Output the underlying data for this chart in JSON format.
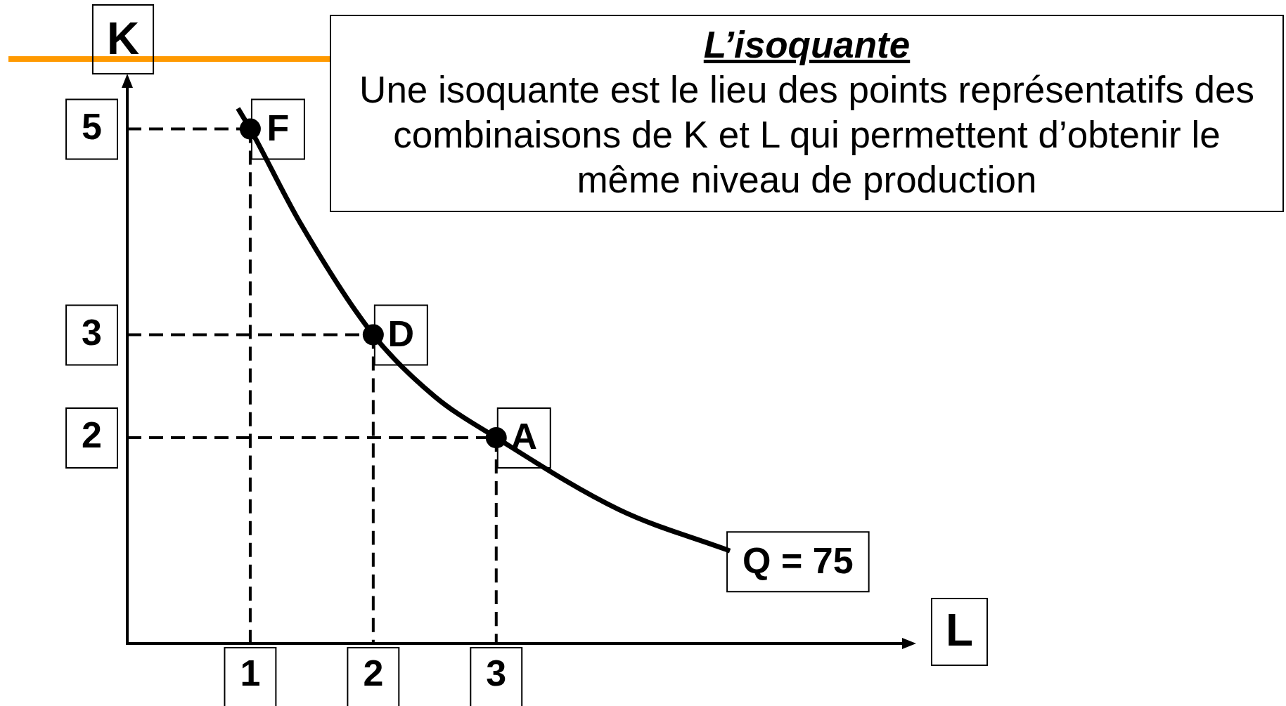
{
  "chart_data": {
    "type": "line",
    "title": "L’isoquante",
    "subtitle": "Une isoquante est le lieu des points représentatifs des combinaisons de K et L qui permettent d’obtenir le même niveau de production",
    "xlabel": "L",
    "ylabel": "K",
    "xlim": [
      0,
      6.3
    ],
    "ylim": [
      0,
      5.4
    ],
    "xticks": [
      1,
      2,
      3
    ],
    "yticks": [
      2,
      3,
      5
    ],
    "grid": false,
    "legend": false,
    "series": [
      {
        "name": "Q = 75",
        "type": "line",
        "color": "#000000",
        "line_style": "solid",
        "marker": "none",
        "x": [
          0.9,
          1,
          1.4,
          2,
          2.5,
          3,
          4,
          4.9
        ],
        "values": [
          5.2,
          5,
          4.1,
          3,
          2.4,
          2,
          1.3,
          0.9
        ]
      },
      {
        "type": "line",
        "color": "#000000",
        "line_style": "dashed",
        "marker": "none",
        "x": [
          0,
          1
        ],
        "values": [
          5,
          5
        ]
      },
      {
        "type": "line",
        "color": "#000000",
        "line_style": "dashed",
        "marker": "none",
        "x": [
          1,
          1
        ],
        "values": [
          5,
          0
        ]
      },
      {
        "type": "line",
        "color": "#000000",
        "line_style": "dashed",
        "marker": "none",
        "x": [
          0,
          2
        ],
        "values": [
          3,
          3
        ]
      },
      {
        "type": "line",
        "color": "#000000",
        "line_style": "dashed",
        "marker": "none",
        "x": [
          2,
          2
        ],
        "values": [
          3,
          0
        ]
      },
      {
        "type": "line",
        "color": "#000000",
        "line_style": "dashed",
        "marker": "none",
        "x": [
          0,
          3
        ],
        "values": [
          2,
          2
        ]
      },
      {
        "type": "line",
        "color": "#000000",
        "line_style": "dashed",
        "marker": "none",
        "x": [
          3,
          3
        ],
        "values": [
          2,
          0
        ]
      },
      {
        "type": "scatter",
        "color": "#000000",
        "marker": "circle",
        "x": [
          1,
          2,
          3
        ],
        "values": [
          5,
          3,
          2
        ]
      }
    ],
    "annotations": [
      {
        "text": "F",
        "x": 1,
        "y": 5
      },
      {
        "text": "D",
        "x": 2,
        "y": 3
      },
      {
        "text": "A",
        "x": 3,
        "y": 2
      }
    ]
  }
}
